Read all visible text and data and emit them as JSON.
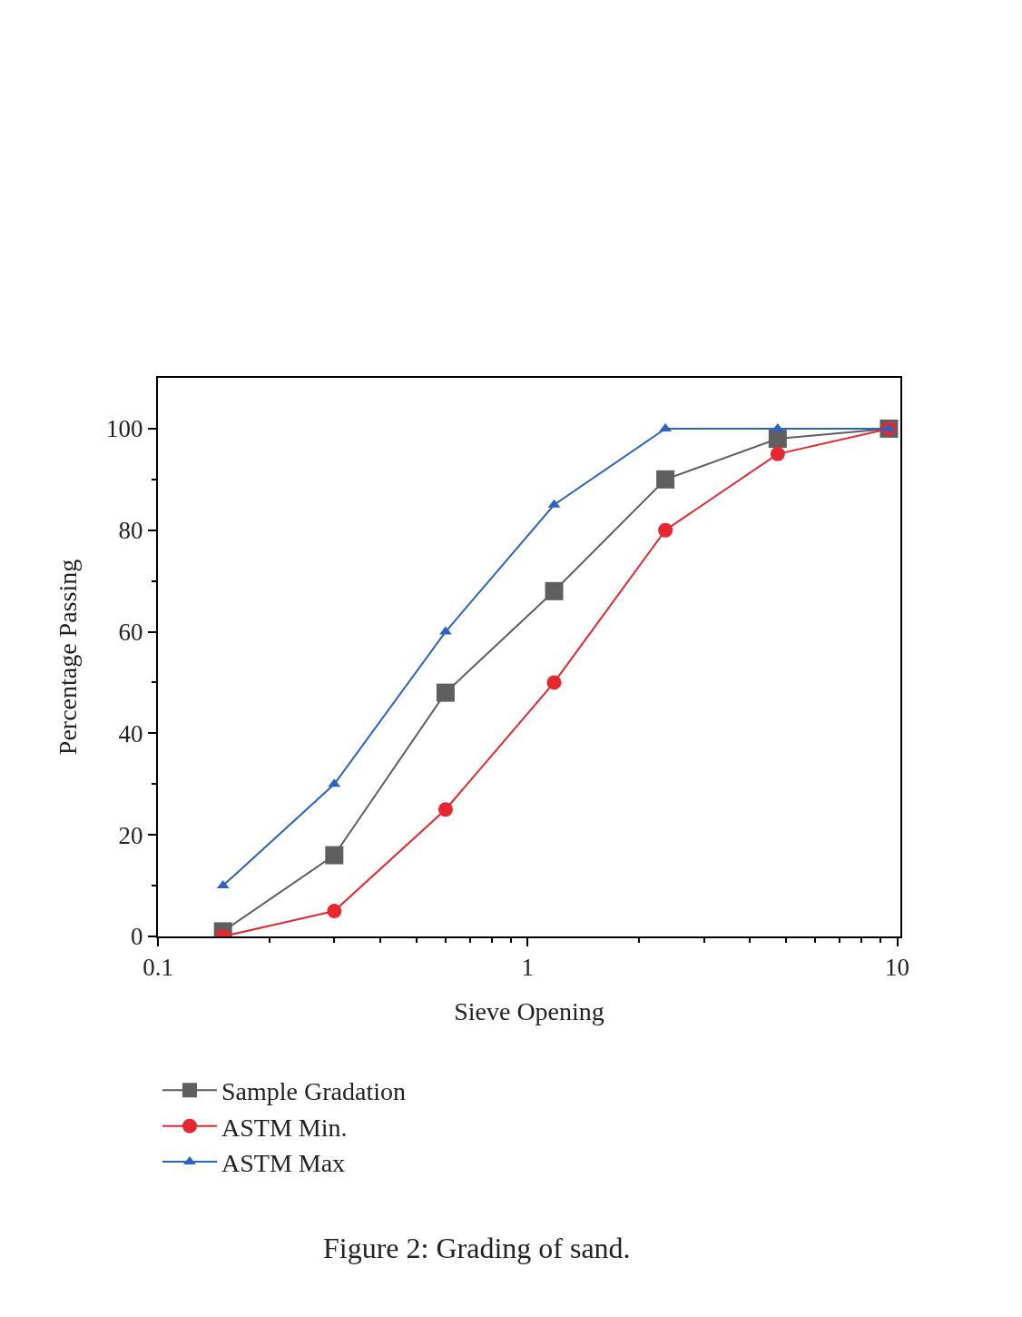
{
  "chart_data": {
    "type": "line",
    "xlabel": "Sieve Opening",
    "ylabel": "Percentage Passing",
    "annotations": [
      "Figure 2: Grading of sand."
    ],
    "log": "x",
    "grid": false,
    "legend": "bottom left",
    "line_style": "solid",
    "x": [
      0.15,
      0.3,
      0.6,
      1.18,
      2.36,
      4.75,
      9.5
    ],
    "series": [
      {
        "name": "Sample Gradation",
        "color": "#5f5f5f",
        "marker": "square",
        "values": [
          1,
          16,
          48,
          68,
          90,
          98,
          100
        ]
      },
      {
        "name": "ASTM Min.",
        "color": "#e8262f",
        "marker": "circle",
        "values": [
          0,
          5,
          25,
          50,
          80,
          95,
          100
        ]
      },
      {
        "name": "ASTM Max",
        "color": "#2b63c0",
        "marker": "triangle",
        "values": [
          10,
          30,
          60,
          85,
          100,
          100,
          100
        ]
      }
    ],
    "xlim": [
      0.1,
      10.2
    ],
    "ylim": [
      0,
      110
    ],
    "xticks": [
      0.1,
      {
        "value": 0.2,
        "label": null
      },
      {
        "value": 0.3,
        "label": null
      },
      {
        "value": 0.4,
        "label": null
      },
      {
        "value": 0.5,
        "label": null
      },
      {
        "value": 0.6,
        "label": null
      },
      {
        "value": 0.7,
        "label": null
      },
      {
        "value": 0.8,
        "label": null
      },
      {
        "value": 0.9,
        "label": null
      },
      1,
      {
        "value": 2,
        "label": null
      },
      {
        "value": 3,
        "label": null
      },
      {
        "value": 4,
        "label": null
      },
      {
        "value": 5,
        "label": null
      },
      {
        "value": 6,
        "label": null
      },
      {
        "value": 7,
        "label": null
      },
      {
        "value": 8,
        "label": null
      },
      {
        "value": 9,
        "label": null
      },
      10
    ],
    "yticks": [
      0,
      {
        "value": 10,
        "label": null
      },
      20,
      {
        "value": 30,
        "label": null
      },
      40,
      {
        "value": 50,
        "label": null
      },
      60,
      {
        "value": 70,
        "label": null
      },
      80,
      {
        "value": 90,
        "label": null
      },
      100
    ]
  }
}
